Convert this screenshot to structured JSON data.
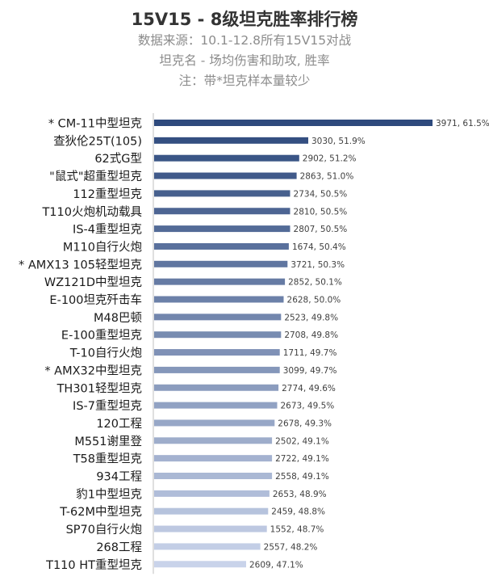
{
  "chart_data": {
    "type": "bar",
    "orientation": "horizontal",
    "title": "15V15 - 8级坦克胜率排行榜",
    "subtitles": [
      "数据来源：10.1-12.8所有15V15对战",
      "坦克名 - 场均伤害和助攻, 胜率",
      "注：带*坦克样本量较少"
    ],
    "xlabel": "",
    "ylabel": "",
    "xlim": [
      47.1,
      61.5
    ],
    "grid": false,
    "legend": "none",
    "color_gradient": [
      "#2e4a7d",
      "#c9d3ea"
    ],
    "categories": [
      "* CM-11中型坦克",
      "查狄伦25T(105)",
      "62式G型",
      "\"鼠式\"超重型坦克",
      "112重型坦克",
      "T110火炮机动载具",
      "IS-4重型坦克",
      "M110自行火炮",
      "* AMX13 105轻型坦克",
      "WZ121D中型坦克",
      "E-100坦克歼击车",
      "M48巴顿",
      "E-100重型坦克",
      "T-10自行火炮",
      "* AMX32中型坦克",
      "TH301轻型坦克",
      "IS-7重型坦克",
      "120工程",
      "M551谢里登",
      "T58重型坦克",
      "934工程",
      "豹1中型坦克",
      "T-62M中型坦克",
      "SP70自行火炮",
      "268工程",
      "T110 HT重型坦克"
    ],
    "values": [
      61.5,
      51.9,
      51.2,
      51.0,
      50.5,
      50.5,
      50.5,
      50.4,
      50.3,
      50.1,
      50.0,
      49.8,
      49.8,
      49.7,
      49.7,
      49.6,
      49.5,
      49.3,
      49.1,
      49.1,
      49.1,
      48.9,
      48.8,
      48.7,
      48.2,
      47.1
    ],
    "damage_assist": [
      3971,
      3030,
      2902,
      2863,
      2734,
      2810,
      2807,
      1674,
      3721,
      2852,
      2628,
      2523,
      2708,
      1711,
      3099,
      2774,
      2673,
      2678,
      2502,
      2722,
      2558,
      2653,
      2459,
      1552,
      2557,
      2609
    ],
    "data_labels": [
      "3971, 61.5%",
      "3030, 51.9%",
      "2902, 51.2%",
      "2863, 51.0%",
      "2734, 50.5%",
      "2810, 50.5%",
      "2807, 50.5%",
      "1674, 50.4%",
      "3721, 50.3%",
      "2852, 50.1%",
      "2628, 50.0%",
      "2523, 49.8%",
      "2708, 49.8%",
      "1711, 49.7%",
      "3099, 49.7%",
      "2774, 49.6%",
      "2673, 49.5%",
      "2678, 49.3%",
      "2502, 49.1%",
      "2722, 49.1%",
      "2558, 49.1%",
      "2653, 48.9%",
      "2459, 48.8%",
      "1552, 48.7%",
      "2557, 48.2%",
      "2609, 47.1%"
    ]
  }
}
